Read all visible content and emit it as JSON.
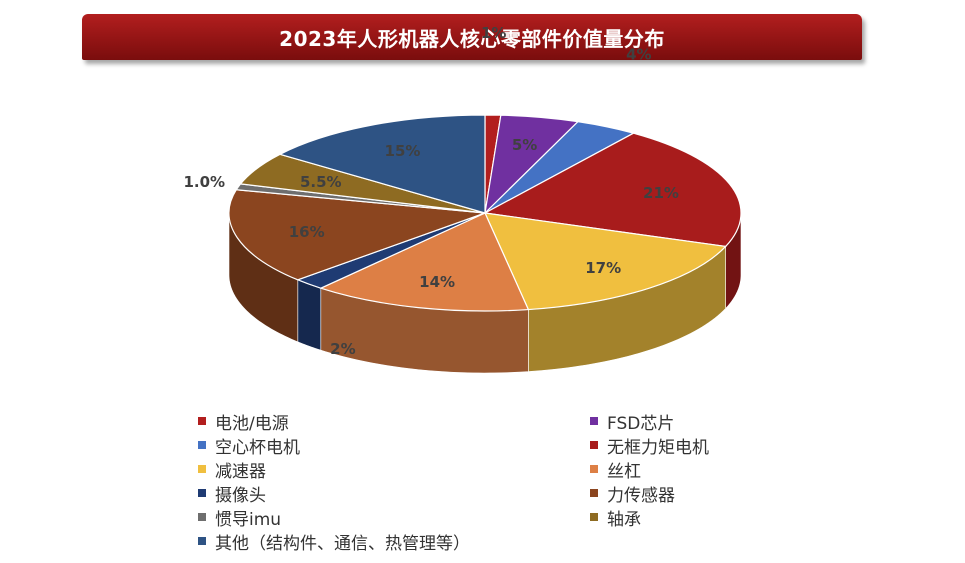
{
  "chart_data": {
    "type": "pie",
    "title": "2023年人形机器人核心零部件价值量分布",
    "style": "3d-pie",
    "legend_position": "bottom",
    "slices": [
      {
        "label": "电池/电源",
        "value": 1,
        "display": "1%",
        "color": "#b21e1e"
      },
      {
        "label": "FSD芯片",
        "value": 5,
        "display": "5%",
        "color": "#7030a0"
      },
      {
        "label": "空心杯电机",
        "value": 4,
        "display": "4%",
        "color": "#4472c4"
      },
      {
        "label": "无框力矩电机",
        "value": 21,
        "display": "21%",
        "color": "#a81c1c"
      },
      {
        "label": "减速器",
        "value": 17,
        "display": "17%",
        "color": "#f0bf3f"
      },
      {
        "label": "丝杠",
        "value": 14,
        "display": "14%",
        "color": "#dd7f45"
      },
      {
        "label": "摄像头",
        "value": 2,
        "display": "2%",
        "color": "#1f3b73"
      },
      {
        "label": "力传感器",
        "value": 16,
        "display": "16%",
        "color": "#8b451f"
      },
      {
        "label": "惯导imu",
        "value": 1.0,
        "display": "1.0%",
        "color": "#6e6e6e"
      },
      {
        "label": "轴承",
        "value": 5.5,
        "display": "5.5%",
        "color": "#8e6b22"
      },
      {
        "label": "其他（结构件、通信、热管理等）",
        "value": 15,
        "display": "15%",
        "color": "#2e5384"
      }
    ]
  }
}
